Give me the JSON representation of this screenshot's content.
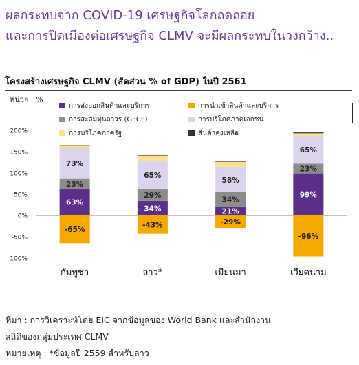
{
  "headline": {
    "line1": "ผลกระทบจาก COVID-19 เศรษฐกิจโลกถดถอย",
    "line2": "และการปิดเมืองต่อเศรษฐกิจ CLMV จะมีผลกระทบในวงกว้าง.."
  },
  "colors": {
    "headline": "#6b3d91",
    "export": "#5b2f8a",
    "import": "#f5a800",
    "gfcf": "#8c8c8c",
    "private": "#dcd3ee",
    "gov": "#fde08f",
    "inventory": "#333333"
  },
  "chart_data": {
    "type": "bar",
    "stacked": true,
    "title": "โครงสร้างเศรษฐกิจ CLMV (สัดส่วน % of GDP) ในปี 2561",
    "unit_label": "หน่วย : %",
    "categories": [
      "กัมพูชา",
      "ลาว*",
      "เมียนมา",
      "เวียดนาม"
    ],
    "ylim": [
      -100,
      200
    ],
    "yticks": [
      -100,
      -50,
      0,
      50,
      100,
      150,
      200
    ],
    "ytick_labels": [
      "-100%",
      "-50%",
      "0%",
      "50%",
      "100%",
      "150%",
      "200%"
    ],
    "legend_placement": "top",
    "series": [
      {
        "name": "การส่งออกสินค้าและบริการ",
        "color": "#5b2f8a",
        "values": [
          63,
          34,
          21,
          99
        ],
        "labels": [
          "63%",
          "34%",
          "21%",
          "99%"
        ],
        "label_color": "#ffffff"
      },
      {
        "name": "การนำเข้าสินค้าและบริการ",
        "color": "#f5a800",
        "values": [
          -65,
          -43,
          -29,
          -96
        ],
        "labels": [
          "-65%",
          "-43%",
          "-29%",
          "-96%"
        ],
        "label_color": "#222222"
      },
      {
        "name": "การสะสมทุนถาวร (GFCF)",
        "color": "#8c8c8c",
        "values": [
          23,
          29,
          34,
          23
        ],
        "labels": [
          "23%",
          "29%",
          "34%",
          "23%"
        ],
        "label_color": "#222222"
      },
      {
        "name": "การบริโภคภาคเอกชน",
        "color": "#dcd3ee",
        "values": [
          73,
          65,
          58,
          65
        ],
        "labels": [
          "73%",
          "65%",
          "58%",
          "65%"
        ],
        "label_color": "#222222"
      },
      {
        "name": "การบริโภคภาครัฐ",
        "color": "#fde08f",
        "values": [
          5,
          13,
          13,
          6
        ],
        "labels": [
          "",
          "",
          "",
          ""
        ],
        "label_color": "#222222"
      },
      {
        "name": "สินค้าคงเหลือ",
        "color": "#333333",
        "values": [
          2,
          1,
          1,
          2
        ],
        "labels": [
          "",
          "",
          "",
          ""
        ],
        "label_color": "#ffffff"
      }
    ]
  },
  "footer": {
    "source_line1": "ที่มา : การวิเคราะห์โดย EIC จากข้อมูลของ World Bank และสำนักงาน",
    "source_line2": "สถิติของกลุ่มประเทศ CLMV",
    "note": "หมายเหตุ : *ข้อมูลปี 2559 สำหรับลาว"
  }
}
